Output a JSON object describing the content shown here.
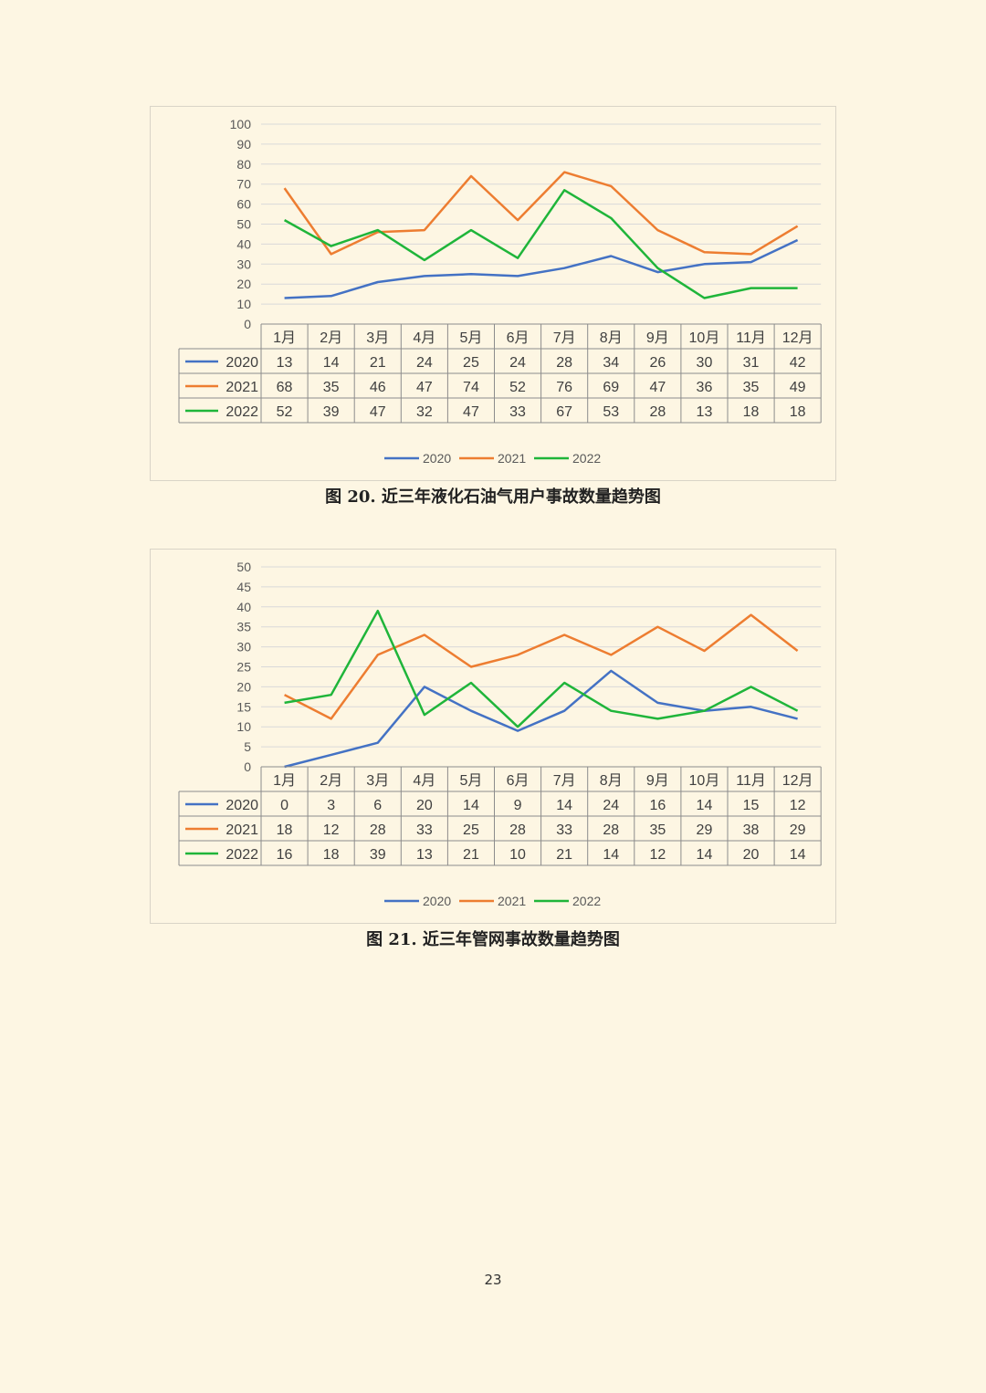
{
  "page": {
    "number": "23",
    "colors": {
      "2020": "#4472c4",
      "2021": "#ed7d31",
      "2022": "#1fb53a"
    }
  },
  "chart_data": [
    {
      "type": "line",
      "caption": "图 20.  近三年液化石油气用户事故数量趋势图",
      "categories": [
        "1月",
        "2月",
        "3月",
        "4月",
        "5月",
        "6月",
        "7月",
        "8月",
        "9月",
        "10月",
        "11月",
        "12月"
      ],
      "ylim": [
        0,
        100
      ],
      "yticks": [
        0,
        10,
        20,
        30,
        40,
        50,
        60,
        70,
        80,
        90,
        100
      ],
      "grid": true,
      "legend": "bottom",
      "data_table": true,
      "series": [
        {
          "name": "2020",
          "color": "#4472c4",
          "values": [
            13,
            14,
            21,
            24,
            25,
            24,
            28,
            34,
            26,
            30,
            31,
            42
          ]
        },
        {
          "name": "2021",
          "color": "#ed7d31",
          "values": [
            68,
            35,
            46,
            47,
            74,
            52,
            76,
            69,
            47,
            36,
            35,
            49
          ]
        },
        {
          "name": "2022",
          "color": "#1fb53a",
          "values": [
            52,
            39,
            47,
            32,
            47,
            33,
            67,
            53,
            28,
            13,
            18,
            18
          ]
        }
      ]
    },
    {
      "type": "line",
      "caption": "图 21.  近三年管网事故数量趋势图",
      "categories": [
        "1月",
        "2月",
        "3月",
        "4月",
        "5月",
        "6月",
        "7月",
        "8月",
        "9月",
        "10月",
        "11月",
        "12月"
      ],
      "ylim": [
        0,
        50
      ],
      "yticks": [
        0,
        5,
        10,
        15,
        20,
        25,
        30,
        35,
        40,
        45,
        50
      ],
      "grid": true,
      "legend": "bottom",
      "data_table": true,
      "series": [
        {
          "name": "2020",
          "color": "#4472c4",
          "values": [
            0,
            3,
            6,
            20,
            14,
            9,
            14,
            24,
            16,
            14,
            15,
            12
          ]
        },
        {
          "name": "2021",
          "color": "#ed7d31",
          "values": [
            18,
            12,
            28,
            33,
            25,
            28,
            33,
            28,
            35,
            29,
            38,
            29
          ]
        },
        {
          "name": "2022",
          "color": "#1fb53a",
          "values": [
            16,
            18,
            39,
            13,
            21,
            10,
            21,
            14,
            12,
            14,
            20,
            14
          ]
        }
      ]
    }
  ]
}
